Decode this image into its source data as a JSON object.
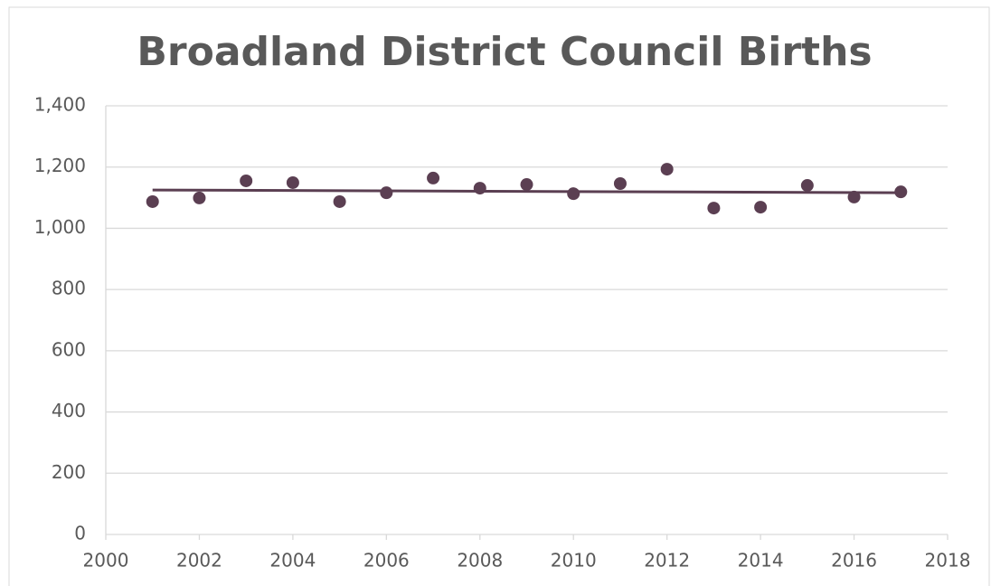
{
  "chart_data": {
    "type": "scatter",
    "title": "Broadland District Council Births",
    "x": [
      2001,
      2002,
      2003,
      2004,
      2005,
      2006,
      2007,
      2008,
      2009,
      2010,
      2011,
      2012,
      2013,
      2014,
      2015,
      2016,
      2017
    ],
    "values": [
      1087,
      1099,
      1155,
      1149,
      1087,
      1116,
      1164,
      1131,
      1143,
      1113,
      1146,
      1193,
      1066,
      1069,
      1140,
      1102,
      1119
    ],
    "color": "#5b3f52",
    "trendline": {
      "x": [
        2001,
        2017
      ],
      "values": [
        1125,
        1116
      ]
    },
    "xlim": [
      2000,
      2018
    ],
    "xticks": [
      2000,
      2002,
      2004,
      2006,
      2008,
      2010,
      2012,
      2014,
      2016,
      2018
    ],
    "ylim": [
      0,
      1400
    ],
    "yticks": [
      0,
      200,
      400,
      600,
      800,
      {
        "value": 1000,
        "label": "1,000"
      },
      {
        "value": 1200,
        "label": "1,200"
      },
      {
        "value": 1400,
        "label": "1,400"
      }
    ],
    "grid": true
  }
}
